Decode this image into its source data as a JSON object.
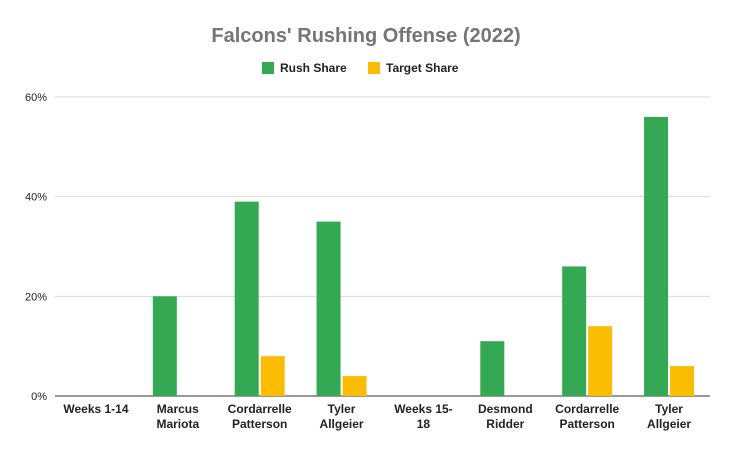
{
  "chart_data": {
    "type": "bar",
    "title": "Falcons' Rushing Offense (2022)",
    "categories": [
      [
        "Weeks 1-14"
      ],
      [
        "Marcus",
        "Mariota"
      ],
      [
        "Cordarrelle",
        "Patterson"
      ],
      [
        "Tyler",
        "Allgeier"
      ],
      [
        "Weeks 15-",
        "18"
      ],
      [
        "Desmond",
        "Ridder"
      ],
      [
        "Cordarrelle",
        "Patterson"
      ],
      [
        "Tyler",
        "Allgeier"
      ]
    ],
    "series": [
      {
        "name": "Rush Share",
        "color": "#34a853",
        "values": [
          0,
          20,
          39,
          35,
          0,
          11,
          26,
          56
        ]
      },
      {
        "name": "Target Share",
        "color": "#fbbc04",
        "values": [
          0,
          0,
          8,
          4,
          0,
          0,
          14,
          6
        ]
      }
    ],
    "yticks": [
      "0%",
      "20%",
      "40%",
      "60%"
    ],
    "ylim": [
      0,
      60
    ],
    "grid": true,
    "legend": "top-center"
  }
}
